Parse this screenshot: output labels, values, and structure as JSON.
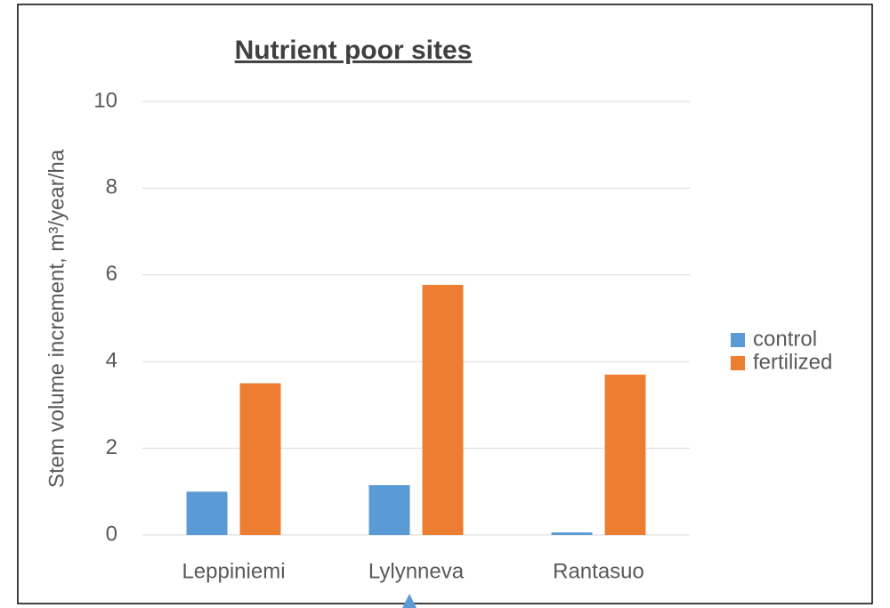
{
  "chart_data": {
    "type": "bar",
    "title": "Nutrient poor sites",
    "y_label": "Stem volume increment, m³/year/ha",
    "categories": [
      "Leppiniemi",
      "Lylynneva",
      "Rantasuo"
    ],
    "series": [
      {
        "name": "control",
        "color": "#5b9bd5",
        "values": [
          1.0,
          1.15,
          0.06
        ]
      },
      {
        "name": "fertilized",
        "color": "#ed7d31",
        "values": [
          3.5,
          5.77,
          3.7
        ]
      }
    ],
    "ylim": [
      0,
      10
    ],
    "yticks": [
      0,
      2,
      4,
      6,
      8,
      10
    ],
    "grid": true,
    "legend": "right"
  }
}
